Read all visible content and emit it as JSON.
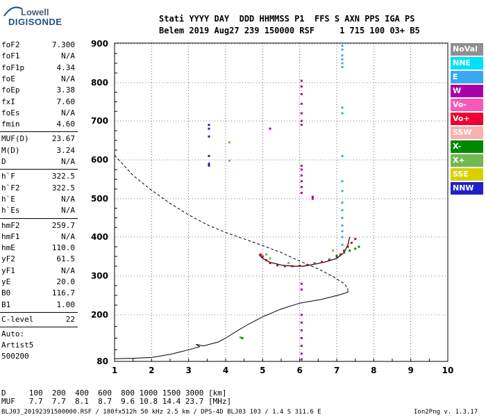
{
  "logo": {
    "line1": "Lowell",
    "line2": "DIGISONDE"
  },
  "header": {
    "line1": "Stati YYYY DAY  DDD HHMMSS P1  FFS S AXN PPS IGA PS",
    "line2": "Belem 2019 Aug27 239 150000 RSF     1 715 100 03+ B5"
  },
  "params": {
    "group1": [
      {
        "label": "foF2",
        "value": "7.300"
      },
      {
        "label": "foF1",
        "value": "N/A"
      },
      {
        "label": "foF1p",
        "value": "4.34"
      },
      {
        "label": "foE",
        "value": "N/A"
      },
      {
        "label": "foEp",
        "value": "3.38"
      },
      {
        "label": "fxI",
        "value": "7.60"
      },
      {
        "label": "foEs",
        "value": "N/A"
      },
      {
        "label": "fmin",
        "value": "4.60"
      }
    ],
    "group2": [
      {
        "label": "MUF(D)",
        "value": "23.67"
      },
      {
        "label": "M(D)",
        "value": "3.24"
      },
      {
        "label": "D",
        "value": "N/A"
      }
    ],
    "group3": [
      {
        "label": "h`F",
        "value": "322.5"
      },
      {
        "label": "h`F2",
        "value": "322.5"
      },
      {
        "label": "h`E",
        "value": "N/A"
      },
      {
        "label": "h`Es",
        "value": "N/A"
      }
    ],
    "group4": [
      {
        "label": "hmF2",
        "value": "259.7"
      },
      {
        "label": "hmF1",
        "value": "N/A"
      },
      {
        "label": "hmE",
        "value": "110.0"
      },
      {
        "label": "yF2",
        "value": "61.5"
      },
      {
        "label": "yF1",
        "value": "N/A"
      },
      {
        "label": "yE",
        "value": "20.0"
      },
      {
        "label": "B0",
        "value": "116.7"
      },
      {
        "label": "B1",
        "value": "1.00"
      }
    ],
    "clevel": {
      "label": "C-level",
      "value": "22"
    },
    "auto": {
      "line1": "Auto:",
      "line2": "Artist5",
      "line3": "500200"
    }
  },
  "legend": [
    {
      "name": "NoVal",
      "color": "#909090"
    },
    {
      "name": "NNE",
      "color": "#00e0f8"
    },
    {
      "name": "E",
      "color": "#38a8f0"
    },
    {
      "name": "W",
      "color": "#a800a8"
    },
    {
      "name": "Vo-",
      "color": "#f858b8"
    },
    {
      "name": "Vo+",
      "color": "#f00030"
    },
    {
      "name": "SSW",
      "color": "#f8b0b0"
    },
    {
      "name": "X-",
      "color": "#008800"
    },
    {
      "name": "X+",
      "color": "#70b850"
    },
    {
      "name": "SSE",
      "color": "#d8d000"
    },
    {
      "name": "NNW",
      "color": "#2020c8"
    }
  ],
  "chart_data": {
    "type": "scatter",
    "title": "",
    "xlabel": "",
    "ylabel": "",
    "xlim": [
      1,
      10
    ],
    "ylim": [
      80,
      900
    ],
    "x_ticks": [
      "1",
      "2",
      "3",
      "4",
      "5",
      "6",
      "7",
      "8",
      "9",
      "10"
    ],
    "y_ticks": [
      "80",
      "200",
      "300",
      "400",
      "500",
      "600",
      "700",
      "800",
      "900"
    ],
    "y_tick_values": [
      80,
      200,
      300,
      400,
      500,
      600,
      700,
      800,
      900
    ],
    "grid": true,
    "series": [
      {
        "name": "O-trace",
        "color": "#c00028",
        "points": [
          [
            4.95,
            355
          ],
          [
            5.0,
            350
          ],
          [
            5.1,
            340
          ],
          [
            5.2,
            333
          ],
          [
            5.4,
            327
          ],
          [
            5.6,
            325
          ],
          [
            5.8,
            325
          ],
          [
            6.0,
            326
          ],
          [
            6.2,
            328
          ],
          [
            6.4,
            332
          ],
          [
            6.6,
            336
          ],
          [
            6.8,
            342
          ],
          [
            7.0,
            350
          ],
          [
            7.1,
            355
          ],
          [
            7.2,
            365
          ],
          [
            7.3,
            375
          ],
          [
            7.4,
            385
          ],
          [
            7.5,
            395
          ]
        ]
      },
      {
        "name": "X-trace",
        "color": "#008800",
        "points": [
          [
            7.0,
            352
          ],
          [
            7.2,
            360
          ],
          [
            7.35,
            365
          ],
          [
            7.5,
            370
          ],
          [
            7.6,
            375
          ]
        ]
      },
      {
        "name": "W",
        "color": "#a800a8",
        "points": [
          [
            6.05,
            805
          ],
          [
            6.05,
            790
          ],
          [
            6.05,
            770
          ],
          [
            6.05,
            745
          ],
          [
            6.05,
            720
          ],
          [
            6.05,
            700
          ],
          [
            6.05,
            690
          ],
          [
            6.05,
            585
          ],
          [
            6.05,
            575
          ],
          [
            6.05,
            560
          ],
          [
            6.05,
            545
          ],
          [
            6.05,
            530
          ],
          [
            6.05,
            515
          ],
          [
            6.35,
            505
          ],
          [
            6.35,
            500
          ],
          [
            5.2,
            680
          ],
          [
            6.05,
            280
          ],
          [
            6.05,
            265
          ],
          [
            6.05,
            200
          ],
          [
            6.05,
            180
          ],
          [
            6.05,
            160
          ],
          [
            6.05,
            140
          ],
          [
            6.05,
            120
          ],
          [
            6.05,
            100
          ],
          [
            6.05,
            85
          ]
        ]
      },
      {
        "name": "E",
        "color": "#38a8f0",
        "points": [
          [
            7.15,
            895
          ],
          [
            7.15,
            885
          ],
          [
            7.15,
            870
          ],
          [
            7.15,
            860
          ],
          [
            7.15,
            850
          ],
          [
            7.15,
            840
          ],
          [
            7.15,
            735
          ],
          [
            7.15,
            720
          ],
          [
            7.15,
            610
          ],
          [
            7.15,
            545
          ],
          [
            7.15,
            520
          ],
          [
            7.15,
            490
          ],
          [
            7.15,
            470
          ],
          [
            7.15,
            450
          ],
          [
            7.15,
            430
          ],
          [
            7.15,
            415
          ],
          [
            7.15,
            400
          ],
          [
            7.15,
            380
          ]
        ]
      },
      {
        "name": "NNW",
        "color": "#2020c8",
        "points": [
          [
            3.55,
            690
          ],
          [
            3.55,
            680
          ],
          [
            3.55,
            660
          ],
          [
            3.55,
            610
          ],
          [
            3.55,
            590
          ],
          [
            3.55,
            585
          ]
        ]
      },
      {
        "name": "X+",
        "color": "#70b850",
        "points": [
          [
            4.1,
            645
          ],
          [
            4.1,
            598
          ],
          [
            5.1,
            355
          ],
          [
            5.2,
            345
          ],
          [
            5.7,
            333
          ],
          [
            6.9,
            365
          ],
          [
            4.4,
            142
          ]
        ]
      },
      {
        "name": "X-small",
        "color": "#008800",
        "points": [
          [
            4.45,
            140
          ]
        ]
      }
    ],
    "profile": [
      [
        1.0,
        612
      ],
      [
        1.5,
        560
      ],
      [
        2.0,
        522
      ],
      [
        2.5,
        488
      ],
      [
        3.0,
        458
      ],
      [
        3.5,
        432
      ],
      [
        4.0,
        412
      ],
      [
        4.5,
        395
      ],
      [
        5.0,
        378
      ],
      [
        5.5,
        360
      ],
      [
        6.0,
        338
      ],
      [
        6.5,
        318
      ],
      [
        6.9,
        298
      ],
      [
        7.2,
        280
      ],
      [
        7.3,
        268
      ],
      [
        7.3,
        258
      ],
      [
        7.1,
        252
      ],
      [
        6.6,
        240
      ],
      [
        6.0,
        230
      ],
      [
        5.5,
        215
      ],
      [
        5.0,
        195
      ],
      [
        4.6,
        175
      ],
      [
        4.3,
        158
      ],
      [
        4.0,
        140
      ],
      [
        3.8,
        130
      ],
      [
        3.6,
        125
      ],
      [
        3.4,
        120
      ],
      [
        3.2,
        124
      ],
      [
        3.3,
        118
      ],
      [
        3.0,
        110
      ],
      [
        2.5,
        98
      ],
      [
        2.0,
        90
      ],
      [
        1.5,
        88
      ],
      [
        1.0,
        87
      ]
    ],
    "virtual_height": [
      [
        4.9,
        355
      ],
      [
        5.0,
        345
      ],
      [
        5.2,
        335
      ],
      [
        5.5,
        328
      ],
      [
        5.8,
        325
      ],
      [
        6.1,
        325
      ],
      [
        6.4,
        330
      ],
      [
        6.7,
        336
      ],
      [
        7.0,
        345
      ],
      [
        7.2,
        360
      ],
      [
        7.3,
        380
      ],
      [
        7.35,
        400
      ]
    ]
  },
  "footer": {
    "d_line": "D     100  200  400  600  800 1000 1500 3000 [km]",
    "muf_line": "MUF   7.7  7.7  8.1  8.7  9.6 10.8 14.4 23.7 [MHz]",
    "file_line": "BLJ03_20192391500000.RSF / 180fx512h 50 kHz 2.5 km / DPS-4D BLJ03 103 / 1.4 S 311.6 E",
    "version": "Ion2Png v. 1.3.17"
  }
}
